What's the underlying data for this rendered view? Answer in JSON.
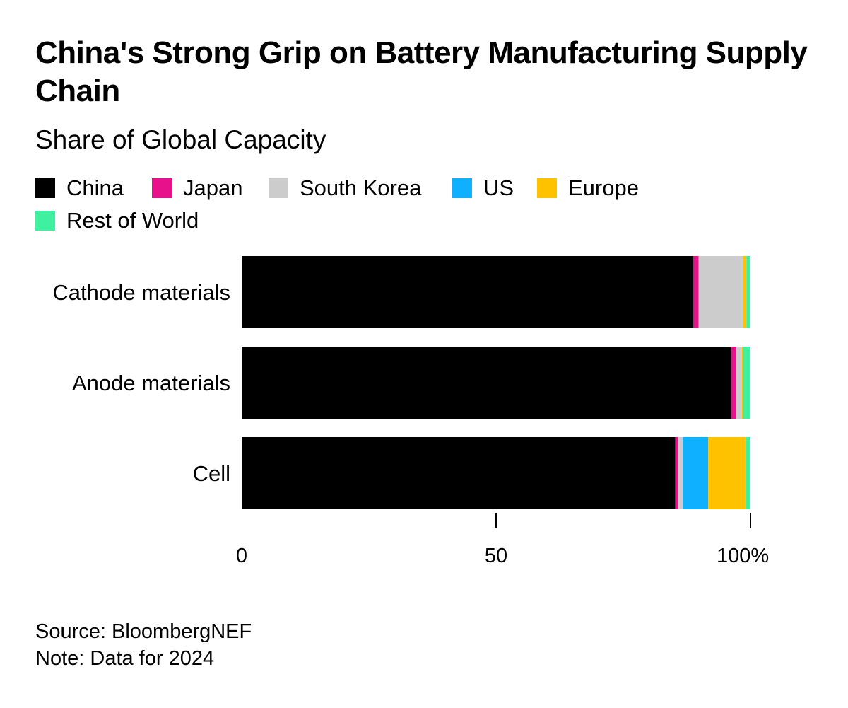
{
  "header": {
    "title": "China's Strong Grip on Battery Manufacturing Supply Chain",
    "subtitle": "Share of Global Capacity"
  },
  "legend": [
    {
      "label": "China",
      "color": "#000000"
    },
    {
      "label": "Japan",
      "color": "#e8118c"
    },
    {
      "label": "South Korea",
      "color": "#cccccc"
    },
    {
      "label": "US",
      "color": "#0fb0ff"
    },
    {
      "label": "Europe",
      "color": "#ffc200"
    },
    {
      "label": "Rest of World",
      "color": "#3ff0a0"
    }
  ],
  "chart_data": {
    "type": "bar",
    "orientation": "horizontal",
    "stacked": true,
    "title": "China's Strong Grip on Battery Manufacturing Supply Chain",
    "subtitle": "Share of Global Capacity",
    "categories": [
      "Cathode materials",
      "Anode materials",
      "Cell"
    ],
    "series": [
      {
        "name": "China",
        "color": "#000000",
        "values": [
          88.8,
          96.2,
          85.2
        ]
      },
      {
        "name": "Japan",
        "color": "#e8118c",
        "values": [
          1.0,
          1.0,
          0.6
        ]
      },
      {
        "name": "South Korea",
        "color": "#cccccc",
        "values": [
          8.7,
          1.1,
          0.9
        ]
      },
      {
        "name": "US",
        "color": "#0fb0ff",
        "values": [
          0.0,
          0.0,
          5.0
        ]
      },
      {
        "name": "Europe",
        "color": "#ffc200",
        "values": [
          0.7,
          0.2,
          7.3
        ]
      },
      {
        "name": "Rest of World",
        "color": "#3ff0a0",
        "values": [
          0.8,
          1.5,
          1.0
        ]
      }
    ],
    "xlim": [
      0,
      100
    ],
    "xticks": [
      {
        "value": 0,
        "label": "0"
      },
      {
        "value": 50,
        "label": "50"
      },
      {
        "value": 100,
        "label": "100%"
      }
    ],
    "xlabel": "",
    "ylabel": "",
    "grid": false,
    "legend_position": "top"
  },
  "footer": {
    "source": "Source: BloombergNEF",
    "note": "Note: Data for 2024"
  }
}
